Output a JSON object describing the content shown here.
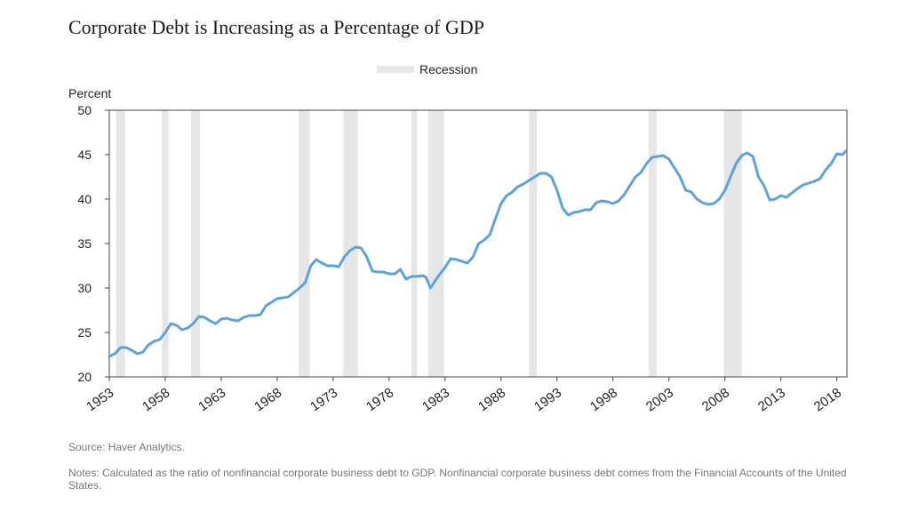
{
  "title": "Corporate Debt is Increasing as a Percentage of GDP",
  "source": "Source: Haver Analytics.",
  "notes": "Notes: Calculated as the ratio of nonfinancial corporate business debt to GDP. Nonfinancial corporate business debt comes from the Financial Accounts of the United States.",
  "colors": {
    "line": "#5ba3d9",
    "recession": "#e6e6e6",
    "axis": "#444444"
  },
  "chart_data": {
    "type": "line",
    "title": "Corporate Debt is Increasing as a Percentage of GDP",
    "xlabel": "",
    "ylabel": "Percent",
    "xlim": [
      1953,
      2018.9
    ],
    "ylim": [
      20,
      50
    ],
    "yticks": [
      20,
      25,
      30,
      35,
      40,
      45,
      50
    ],
    "xticks": [
      1953,
      1958,
      1963,
      1968,
      1973,
      1978,
      1983,
      1988,
      1993,
      1998,
      2003,
      2008,
      2013,
      2018
    ],
    "grid": false,
    "legend": {
      "position": "top-center",
      "entries": [
        {
          "label": "Recession",
          "type": "shaded-band"
        }
      ]
    },
    "recessions": [
      [
        1953.6,
        1954.4
      ],
      [
        1957.7,
        1958.3
      ],
      [
        1960.3,
        1961.1
      ],
      [
        1969.9,
        1970.9
      ],
      [
        1973.9,
        1975.2
      ],
      [
        1980.0,
        1980.5
      ],
      [
        1981.5,
        1982.9
      ],
      [
        1990.5,
        1991.2
      ],
      [
        2001.2,
        2001.9
      ],
      [
        2007.9,
        2009.5
      ]
    ],
    "series": [
      {
        "values": [
          [
            1953.0,
            22.3
          ],
          [
            1953.5,
            22.6
          ],
          [
            1954.0,
            23.3
          ],
          [
            1954.5,
            23.3
          ],
          [
            1955.0,
            23.0
          ],
          [
            1955.5,
            22.6
          ],
          [
            1956.0,
            22.8
          ],
          [
            1956.5,
            23.6
          ],
          [
            1957.0,
            24.0
          ],
          [
            1957.5,
            24.2
          ],
          [
            1958.0,
            25.0
          ],
          [
            1958.5,
            26.0
          ],
          [
            1959.0,
            25.8
          ],
          [
            1959.5,
            25.3
          ],
          [
            1960.0,
            25.5
          ],
          [
            1960.5,
            26.0
          ],
          [
            1961.0,
            26.8
          ],
          [
            1961.5,
            26.7
          ],
          [
            1962.0,
            26.3
          ],
          [
            1962.5,
            26.0
          ],
          [
            1963.0,
            26.5
          ],
          [
            1963.5,
            26.6
          ],
          [
            1964.0,
            26.4
          ],
          [
            1964.5,
            26.3
          ],
          [
            1965.0,
            26.7
          ],
          [
            1965.5,
            26.9
          ],
          [
            1966.0,
            26.9
          ],
          [
            1966.5,
            27.0
          ],
          [
            1967.0,
            28.0
          ],
          [
            1967.5,
            28.4
          ],
          [
            1968.0,
            28.8
          ],
          [
            1968.5,
            28.9
          ],
          [
            1969.0,
            29.0
          ],
          [
            1969.5,
            29.5
          ],
          [
            1970.0,
            30.0
          ],
          [
            1970.5,
            30.6
          ],
          [
            1971.0,
            32.5
          ],
          [
            1971.5,
            33.2
          ],
          [
            1972.0,
            32.8
          ],
          [
            1972.5,
            32.5
          ],
          [
            1973.0,
            32.5
          ],
          [
            1973.5,
            32.4
          ],
          [
            1974.0,
            33.5
          ],
          [
            1974.5,
            34.2
          ],
          [
            1975.0,
            34.6
          ],
          [
            1975.5,
            34.5
          ],
          [
            1976.0,
            33.5
          ],
          [
            1976.5,
            31.9
          ],
          [
            1977.0,
            31.8
          ],
          [
            1977.5,
            31.8
          ],
          [
            1978.0,
            31.6
          ],
          [
            1978.5,
            31.6
          ],
          [
            1979.0,
            32.1
          ],
          [
            1979.5,
            31.0
          ],
          [
            1980.0,
            31.3
          ],
          [
            1980.5,
            31.3
          ],
          [
            1981.0,
            31.4
          ],
          [
            1981.3,
            31.2
          ],
          [
            1981.7,
            30.0
          ],
          [
            1982.0,
            30.6
          ],
          [
            1982.5,
            31.5
          ],
          [
            1983.0,
            32.3
          ],
          [
            1983.5,
            33.3
          ],
          [
            1984.0,
            33.2
          ],
          [
            1984.5,
            33.0
          ],
          [
            1985.0,
            32.8
          ],
          [
            1985.5,
            33.5
          ],
          [
            1986.0,
            35.0
          ],
          [
            1986.5,
            35.4
          ],
          [
            1987.0,
            36.0
          ],
          [
            1987.5,
            37.8
          ],
          [
            1988.0,
            39.5
          ],
          [
            1988.5,
            40.4
          ],
          [
            1989.0,
            40.8
          ],
          [
            1989.5,
            41.4
          ],
          [
            1990.0,
            41.7
          ],
          [
            1990.5,
            42.1
          ],
          [
            1991.0,
            42.5
          ],
          [
            1991.5,
            42.9
          ],
          [
            1992.0,
            42.9
          ],
          [
            1992.5,
            42.5
          ],
          [
            1993.0,
            41.0
          ],
          [
            1993.5,
            39.0
          ],
          [
            1994.0,
            38.2
          ],
          [
            1994.5,
            38.5
          ],
          [
            1995.0,
            38.6
          ],
          [
            1995.5,
            38.8
          ],
          [
            1996.0,
            38.8
          ],
          [
            1996.5,
            39.6
          ],
          [
            1997.0,
            39.8
          ],
          [
            1997.5,
            39.7
          ],
          [
            1998.0,
            39.5
          ],
          [
            1998.5,
            39.8
          ],
          [
            1999.0,
            40.5
          ],
          [
            1999.5,
            41.5
          ],
          [
            2000.0,
            42.5
          ],
          [
            2000.5,
            43.0
          ],
          [
            2001.0,
            44.0
          ],
          [
            2001.5,
            44.7
          ],
          [
            2002.0,
            44.8
          ],
          [
            2002.5,
            44.9
          ],
          [
            2003.0,
            44.5
          ],
          [
            2003.5,
            43.5
          ],
          [
            2004.0,
            42.5
          ],
          [
            2004.5,
            41.0
          ],
          [
            2005.0,
            40.8
          ],
          [
            2005.5,
            40.0
          ],
          [
            2006.0,
            39.6
          ],
          [
            2006.5,
            39.4
          ],
          [
            2007.0,
            39.5
          ],
          [
            2007.5,
            40.0
          ],
          [
            2008.0,
            41.0
          ],
          [
            2008.5,
            42.5
          ],
          [
            2009.0,
            44.0
          ],
          [
            2009.5,
            44.9
          ],
          [
            2010.0,
            45.2
          ],
          [
            2010.5,
            44.8
          ],
          [
            2011.0,
            42.5
          ],
          [
            2011.5,
            41.5
          ],
          [
            2012.0,
            39.9
          ],
          [
            2012.5,
            40.0
          ],
          [
            2013.0,
            40.4
          ],
          [
            2013.5,
            40.2
          ],
          [
            2014.0,
            40.7
          ],
          [
            2014.5,
            41.2
          ],
          [
            2015.0,
            41.6
          ],
          [
            2015.5,
            41.8
          ],
          [
            2016.0,
            42.0
          ],
          [
            2016.5,
            42.3
          ],
          [
            2017.0,
            43.3
          ],
          [
            2017.5,
            44.0
          ],
          [
            2018.0,
            45.1
          ],
          [
            2018.5,
            45.0
          ],
          [
            2018.8,
            45.4
          ]
        ]
      }
    ]
  }
}
